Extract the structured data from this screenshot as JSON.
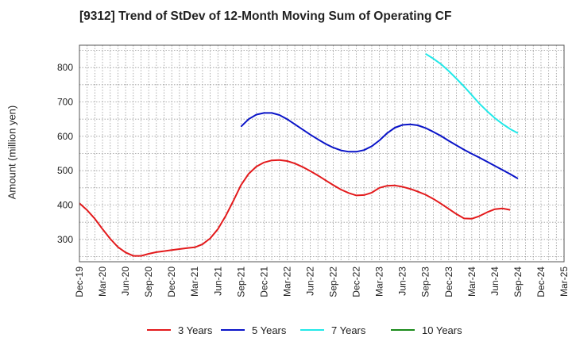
{
  "chart_data": {
    "type": "line",
    "title": "[9312]  Trend of StDev of 12-Month Moving Sum of Operating CF",
    "xlabel": "",
    "ylabel": "Amount (million yen)",
    "x_ticks": [
      "Dec-19",
      "Mar-20",
      "Jun-20",
      "Sep-20",
      "Dec-20",
      "Mar-21",
      "Jun-21",
      "Sep-21",
      "Dec-21",
      "Mar-22",
      "Jun-22",
      "Sep-22",
      "Dec-22",
      "Mar-23",
      "Jun-23",
      "Sep-23",
      "Dec-23",
      "Mar-24",
      "Jun-24",
      "Sep-24",
      "Dec-24",
      "Mar-25"
    ],
    "y_ticks": [
      300,
      400,
      500,
      600,
      700,
      800
    ],
    "ylim": [
      235,
      865
    ],
    "grid": true,
    "legend_position": "bottom",
    "series": [
      {
        "name": "3 Years",
        "color": "#e31a1c",
        "start": "Dec-19",
        "values": [
          405,
          385,
          360,
          330,
          302,
          278,
          262,
          252,
          252,
          258,
          263,
          266,
          269,
          272,
          275,
          277,
          286,
          303,
          330,
          368,
          412,
          458,
          491,
          512,
          524,
          530,
          531,
          528,
          521,
          511,
          499,
          486,
          472,
          458,
          445,
          435,
          428,
          429,
          436,
          450,
          456,
          457,
          453,
          447,
          439,
          430,
          418,
          404,
          389,
          374,
          361,
          360,
          368,
          379,
          388,
          390,
          386
        ]
      },
      {
        "name": "5 Years",
        "color": "#0a14c8",
        "start": "Sep-21",
        "values": [
          628,
          650,
          663,
          668,
          668,
          662,
          650,
          635,
          620,
          605,
          591,
          578,
          567,
          559,
          555,
          555,
          560,
          571,
          588,
          609,
          625,
          633,
          635,
          632,
          624,
          613,
          601,
          587,
          574,
          561,
          549,
          538,
          526,
          514,
          502,
          490,
          477
        ]
      },
      {
        "name": "7 Years",
        "color": "#22e8e8",
        "start": "Sep-23",
        "values": [
          840,
          826,
          810,
          790,
          768,
          745,
          720,
          695,
          673,
          653,
          636,
          621,
          609
        ]
      },
      {
        "name": "10 Years",
        "color": "#1a8a1a",
        "start": "Sep-24",
        "values": []
      }
    ]
  }
}
